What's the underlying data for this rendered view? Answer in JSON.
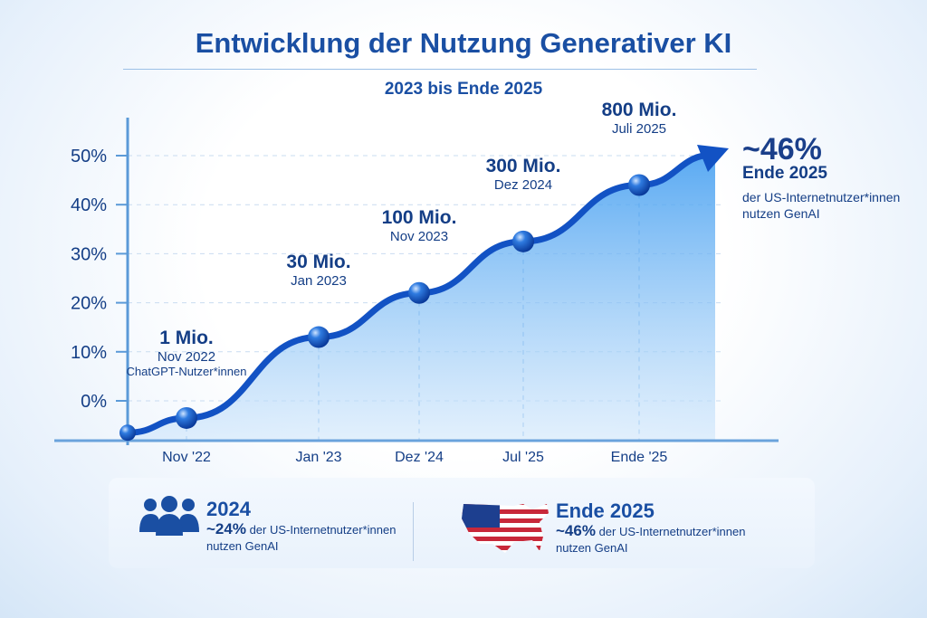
{
  "title": "Entwicklung der Nutzung Generativer KI",
  "subtitle": "2023 bis Ende 2025",
  "chart_data": {
    "type": "area",
    "ylim": [
      -8,
      52
    ],
    "yticks": [
      "0%",
      "10%",
      "20%",
      "30%",
      "40%",
      "50%"
    ],
    "ytick_values": [
      0,
      10,
      20,
      30,
      40,
      50
    ],
    "categories": [
      "",
      "Nov '22",
      "Jan '23",
      "Dez '24",
      "Jul '25",
      "Ende '25"
    ],
    "values": [
      -6.5,
      -3.5,
      13,
      22,
      32.5,
      44
    ],
    "arrow_end_value": 51,
    "grid": true,
    "annotations": [
      {
        "value": "1 Mio.",
        "date": "Nov 2022",
        "note": "ChatGPT-Nutzer*innen"
      },
      {
        "value": "30 Mio.",
        "date": "Jan 2023"
      },
      {
        "value": "100 Mio.",
        "date": "Nov 2023"
      },
      {
        "value": "300 Mio.",
        "date": "Dez 2024"
      },
      {
        "value": "800 Mio.",
        "date": "Juli 2025"
      }
    ],
    "colors": {
      "line": "#1252c4",
      "fill": "#4aa3f0",
      "text": "#143e86"
    }
  },
  "end_callout": {
    "value": "~46%",
    "year": "Ende 2025",
    "text1": "der US-Internetnutzer*innen",
    "text2": "nutzen GenAI"
  },
  "stats": [
    {
      "icon": "people-icon",
      "heading": "2024",
      "value": "~24%",
      "text": "der US-Internetnutzer*innen",
      "text2": "nutzen GenAI"
    },
    {
      "icon": "us-flag-map-icon",
      "heading": "Ende 2025",
      "value": "~46%",
      "text": "der US-Internetnutzer*innen",
      "text2": "nutzen GenAI"
    }
  ]
}
